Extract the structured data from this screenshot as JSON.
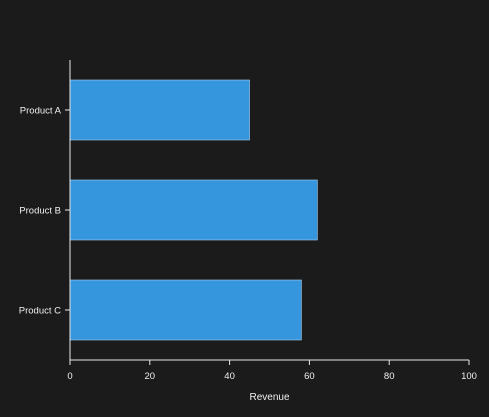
{
  "chart_data": {
    "type": "bar",
    "orientation": "horizontal",
    "categories": [
      "Product A",
      "Product B",
      "Product C"
    ],
    "values": [
      45,
      62,
      58
    ],
    "title": "",
    "xlabel": "Revenue",
    "ylabel": "",
    "xlim": [
      0,
      100
    ],
    "xticks": [
      0,
      20,
      40,
      60,
      80,
      100
    ],
    "grid": false,
    "legend": "none",
    "colors": {
      "background": "#1b1b1b",
      "bar": "#3596dd",
      "axis": "#e8e8e8",
      "text": "#f0f0f0"
    }
  }
}
